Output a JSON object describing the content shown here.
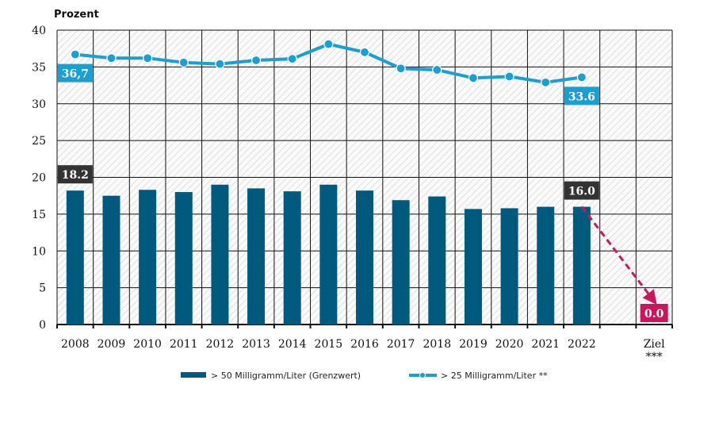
{
  "chart_data": {
    "type": "bar",
    "ylabel": "Prozent",
    "ylim": [
      0,
      40
    ],
    "yticks": [
      0,
      5,
      10,
      15,
      20,
      25,
      30,
      35,
      40
    ],
    "grid": true,
    "categories": [
      "2008",
      "2009",
      "2010",
      "2011",
      "2012",
      "2013",
      "2014",
      "2015",
      "2016",
      "2017",
      "2018",
      "2019",
      "2020",
      "2021",
      "2022",
      "",
      "Ziel"
    ],
    "category_sub": {
      "Ziel": "***"
    },
    "series": [
      {
        "name": "> 50 Milligramm/Liter (Grenzwert)",
        "type": "bar",
        "color": "#005a7e",
        "values": [
          18.2,
          17.5,
          18.3,
          18.0,
          19.0,
          18.5,
          18.1,
          19.0,
          18.2,
          16.9,
          17.4,
          15.7,
          15.8,
          16.0,
          16.0,
          null,
          null
        ]
      },
      {
        "name": "> 25 Milligramm/Liter **",
        "type": "line",
        "color": "#1a9fd0",
        "values": [
          36.7,
          36.2,
          36.2,
          35.6,
          35.4,
          35.9,
          36.1,
          38.1,
          37.0,
          34.8,
          34.6,
          33.5,
          33.7,
          32.9,
          33.6,
          null,
          null
        ]
      }
    ],
    "target": {
      "category": "Ziel",
      "value": 0.0,
      "from_category": "2022",
      "from_value": 16.0,
      "color": "#c8175d",
      "style": "dashed-arrow"
    },
    "annotations": [
      {
        "text": "36,7",
        "category": "2008",
        "series": 1,
        "color": "#1a9fd0"
      },
      {
        "text": "33.6",
        "category": "2022",
        "series": 1,
        "color": "#1a9fd0"
      },
      {
        "text": "18.2",
        "category": "2008",
        "series": 0,
        "color": "#333333"
      },
      {
        "text": "16.0",
        "category": "2022",
        "series": 0,
        "color": "#333333"
      },
      {
        "text": "0.0",
        "category": "Ziel",
        "series": "target",
        "color": "#c8175d"
      }
    ],
    "legend_placement": "bottom"
  }
}
